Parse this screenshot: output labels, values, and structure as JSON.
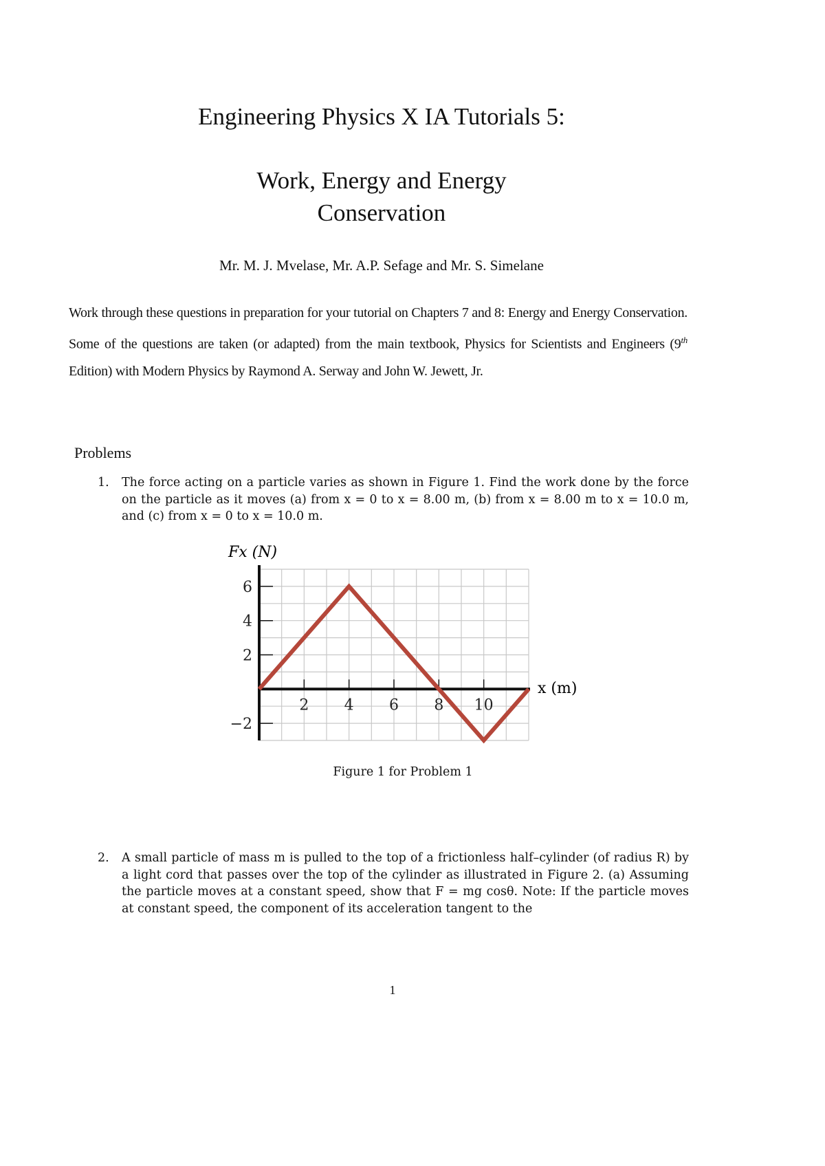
{
  "header": {
    "title": "Engineering Physics X IA Tutorials 5:",
    "subtitle_line1": "Work, Energy and Energy",
    "subtitle_line2": "Conservation",
    "authors": "Mr. M. J. Mvelase, Mr. A.P. Sefage and Mr. S. Simelane"
  },
  "intro": {
    "part1": "Work through these questions in preparation for your tutorial on Chapters 7 and 8: Energy and Energy Conservation. Some of the questions are taken (or adapted) from the main textbook, Physics for Scientists and Engineers (9",
    "sup": "th",
    "part2": " Edition) with Modern Physics by Raymond A. Serway and John W. Jewett, Jr."
  },
  "problems_heading": "Problems",
  "problems": [
    {
      "number": "1.",
      "text": "The force acting on a particle varies as shown in Figure 1. Find the work done by the force on the particle as it moves (a) from x = 0 to x = 8.00 m, (b) from x = 8.00 m to x = 10.0 m, and (c) from x = 0 to x = 10.0 m."
    },
    {
      "number": "2.",
      "text": "A small particle of mass m is pulled to the top of a frictionless half–cylinder (of radius R) by a light cord that passes over the top of the cylinder as illustrated in Figure 2. (a) Assuming the particle moves at a constant speed, show that F = mg cosθ. Note: If the particle moves at constant speed, the component of its acceleration tangent to the"
    }
  ],
  "figure_caption": "Figure 1 for Problem 1",
  "page_number": "1",
  "chart_data": {
    "type": "line",
    "title": "",
    "xlabel": "x (m)",
    "ylabel": "Fx (N)",
    "xlim": [
      0,
      12
    ],
    "ylim": [
      -3,
      7
    ],
    "x_ticks": [
      "2",
      "4",
      "6",
      "8",
      "10"
    ],
    "y_ticks": [
      "6",
      "4",
      "2",
      "−2"
    ],
    "grid": true,
    "series": [
      {
        "x": [
          0,
          4,
          10,
          12
        ],
        "y": [
          0,
          6,
          -3,
          0
        ],
        "color": "#b5473a"
      }
    ]
  }
}
